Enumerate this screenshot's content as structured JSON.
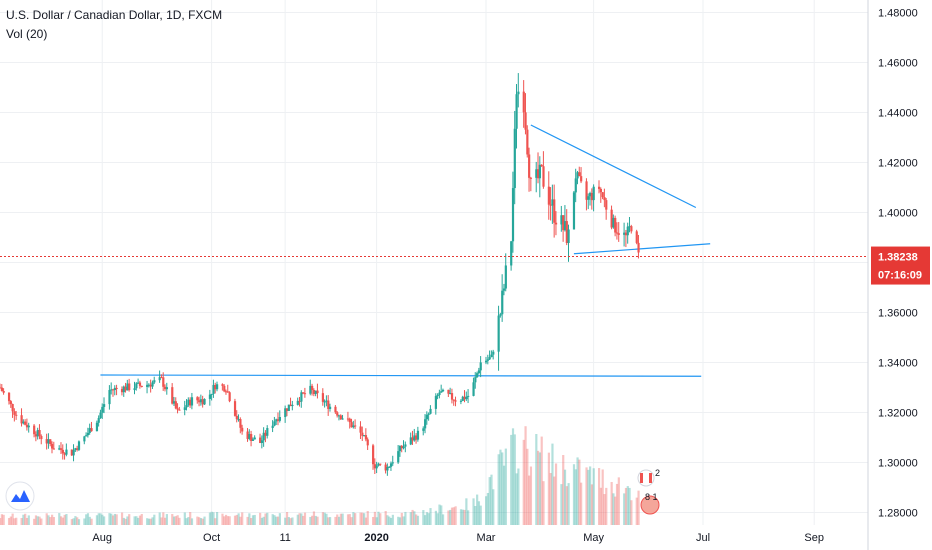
{
  "header": {
    "symbol_title": "U.S. Dollar / Canadian Dollar, 1D, FXCM",
    "volume_title": "Vol (20)"
  },
  "colors": {
    "up": "#26a69a",
    "down": "#ef5350",
    "trendline": "#2196f3",
    "current_price_line": "#e53935",
    "grid": "#eef0f3",
    "logo": "#2962ff"
  },
  "badges": {
    "top": "2",
    "bottom": "8 1"
  },
  "icons": [
    "tradingview-logo-icon",
    "canada-flag-icon",
    "earnings-badge-icon"
  ],
  "chart_data": {
    "type": "candlestick",
    "title": "U.S. Dollar / Canadian Dollar, 1D, FXCM",
    "interval": "1D",
    "ylim": [
      1.275,
      1.485
    ],
    "y_ticks": [
      "1.48000",
      "1.46000",
      "1.44000",
      "1.42000",
      "1.40000",
      "1.38000",
      "1.36000",
      "1.34000",
      "1.32000",
      "1.30000",
      "1.28000"
    ],
    "x_ticks": [
      "Aug",
      "Oct",
      "11",
      "2020",
      "Mar",
      "May",
      "Jul",
      "Sep"
    ],
    "x_tick_dates": [
      "2019-08-01",
      "2019-10-01",
      "2019-11-11",
      "2020-01-01",
      "2020-03-02",
      "2020-05-01",
      "2020-07-01",
      "2020-09-01"
    ],
    "date_range": [
      "2019-06-05",
      "2020-10-01"
    ],
    "current_price": "1.38238",
    "countdown": "07:16:09",
    "close_path": [
      [
        "2019-06-05",
        1.33
      ],
      [
        "2019-06-15",
        1.318
      ],
      [
        "2019-06-25",
        1.312
      ],
      [
        "2019-07-05",
        1.306
      ],
      [
        "2019-07-15",
        1.304
      ],
      [
        "2019-07-22",
        1.31
      ],
      [
        "2019-07-30",
        1.318
      ],
      [
        "2019-08-05",
        1.329
      ],
      [
        "2019-08-15",
        1.33
      ],
      [
        "2019-08-25",
        1.331
      ],
      [
        "2019-09-03",
        1.333
      ],
      [
        "2019-09-12",
        1.32
      ],
      [
        "2019-09-20",
        1.325
      ],
      [
        "2019-09-28",
        1.325
      ],
      [
        "2019-10-03",
        1.331
      ],
      [
        "2019-10-09",
        1.33
      ],
      [
        "2019-10-18",
        1.312
      ],
      [
        "2019-10-28",
        1.308
      ],
      [
        "2019-11-05",
        1.317
      ],
      [
        "2019-11-15",
        1.324
      ],
      [
        "2019-11-25",
        1.329
      ],
      [
        "2019-12-05",
        1.323
      ],
      [
        "2019-12-15",
        1.317
      ],
      [
        "2019-12-24",
        1.311
      ],
      [
        "2019-12-31",
        1.299
      ],
      [
        "2020-01-07",
        1.298
      ],
      [
        "2020-01-15",
        1.306
      ],
      [
        "2020-01-25",
        1.312
      ],
      [
        "2020-02-05",
        1.328
      ],
      [
        "2020-02-15",
        1.325
      ],
      [
        "2020-02-22",
        1.327
      ],
      [
        "2020-02-28",
        1.34
      ],
      [
        "2020-03-05",
        1.342
      ],
      [
        "2020-03-10",
        1.36
      ],
      [
        "2020-03-16",
        1.39
      ],
      [
        "2020-03-19",
        1.45
      ],
      [
        "2020-03-23",
        1.445
      ],
      [
        "2020-03-27",
        1.41
      ],
      [
        "2020-04-02",
        1.415
      ],
      [
        "2020-04-09",
        1.4
      ],
      [
        "2020-04-17",
        1.39
      ],
      [
        "2020-04-21",
        1.415
      ],
      [
        "2020-04-27",
        1.405
      ],
      [
        "2020-05-04",
        1.41
      ],
      [
        "2020-05-12",
        1.395
      ],
      [
        "2020-05-19",
        1.39
      ],
      [
        "2020-05-22",
        1.395
      ],
      [
        "2020-05-26",
        1.3824
      ]
    ],
    "volume_profile": [
      [
        "2019-06-05",
        0.1
      ],
      [
        "2020-01-20",
        0.13
      ],
      [
        "2020-02-25",
        0.25
      ],
      [
        "2020-03-05",
        0.55
      ],
      [
        "2020-03-20",
        0.95
      ],
      [
        "2020-04-10",
        0.7
      ],
      [
        "2020-05-26",
        0.4
      ]
    ],
    "trendlines": [
      {
        "name": "resistance",
        "points": [
          [
            "2019-07-31",
            1.335
          ],
          [
            "2020-06-30",
            1.3345
          ]
        ]
      },
      {
        "name": "triangle-top",
        "points": [
          [
            "2020-03-27",
            1.435
          ],
          [
            "2020-06-27",
            1.402
          ]
        ]
      },
      {
        "name": "triangle-bottom",
        "points": [
          [
            "2020-04-20",
            1.3835
          ],
          [
            "2020-07-05",
            1.3875
          ]
        ]
      }
    ]
  }
}
